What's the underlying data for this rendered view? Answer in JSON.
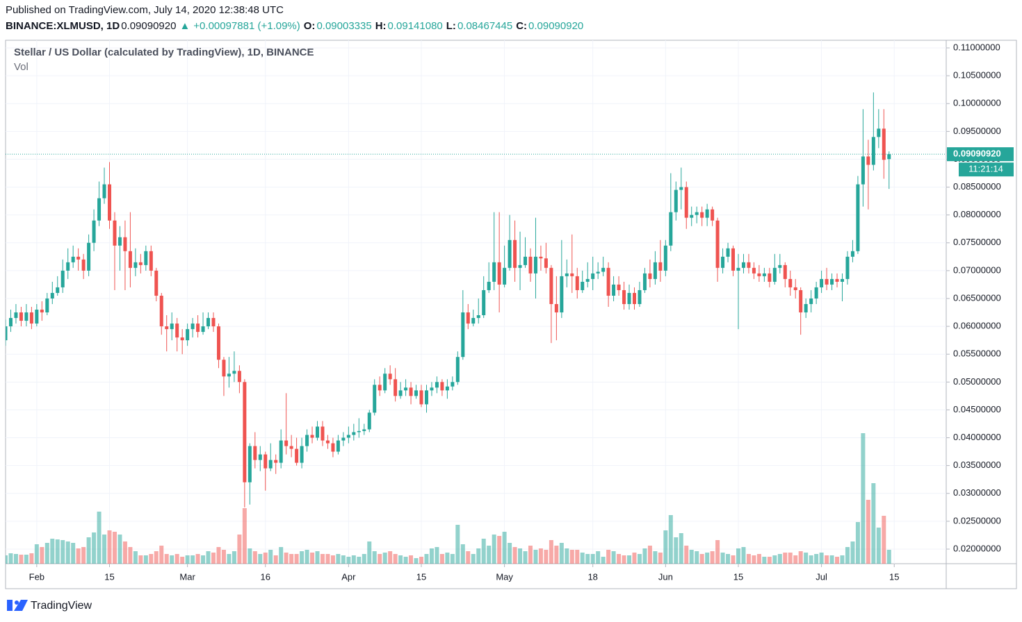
{
  "header": {
    "published": "Published on TradingView.com, July 14, 2020 12:38:48 UTC",
    "line2": [
      {
        "text": "BINANCE:XLMUSD, 1D",
        "color": "#131722",
        "bold": true
      },
      {
        "text": "0.09090920",
        "color": "#131722"
      },
      {
        "text": "▲",
        "color": "#26a69a"
      },
      {
        "text": "+0.00097881 (+1.09%)",
        "color": "#26a69a"
      },
      {
        "text": "O:",
        "color": "#131722",
        "bold": true
      },
      {
        "text": "0.09003335",
        "color": "#26a69a"
      },
      {
        "text": "H:",
        "color": "#131722",
        "bold": true
      },
      {
        "text": "0.09141080",
        "color": "#26a69a"
      },
      {
        "text": "L:",
        "color": "#131722",
        "bold": true
      },
      {
        "text": "0.08467445",
        "color": "#26a69a"
      },
      {
        "text": "C:",
        "color": "#131722",
        "bold": true
      },
      {
        "text": "0.09090920",
        "color": "#26a69a"
      }
    ]
  },
  "chart_data": {
    "type": "candlestick",
    "title": "Stellar / US Dollar (calculated by TradingView), 1D, BINANCE",
    "subtitle": "Vol",
    "up_color": "#26a69a",
    "down_color": "#ef5350",
    "grid": true,
    "xlim": [
      "2020-01-26",
      "2020-07-25"
    ],
    "ylim": [
      0.01738,
      0.11137
    ],
    "yticks": [
      {
        "value": 0.02,
        "label": "0.02000000"
      },
      {
        "value": 0.025,
        "label": "0.02500000"
      },
      {
        "value": 0.03,
        "label": "0.03000000"
      },
      {
        "value": 0.035,
        "label": "0.03500000"
      },
      {
        "value": 0.04,
        "label": "0.04000000"
      },
      {
        "value": 0.045,
        "label": "0.04500000"
      },
      {
        "value": 0.05,
        "label": "0.05000000"
      },
      {
        "value": 0.055,
        "label": "0.05500000"
      },
      {
        "value": 0.06,
        "label": "0.06000000"
      },
      {
        "value": 0.065,
        "label": "0.06500000"
      },
      {
        "value": 0.07,
        "label": "0.07000000"
      },
      {
        "value": 0.075,
        "label": "0.07500000"
      },
      {
        "value": 0.08,
        "label": "0.08000000"
      },
      {
        "value": 0.085,
        "label": "0.08500000"
      },
      {
        "value": 0.09,
        "label": "0.09000000"
      },
      {
        "value": 0.095,
        "label": "0.09500000"
      },
      {
        "value": 0.1,
        "label": "0.10000000"
      },
      {
        "value": 0.105,
        "label": "0.10500000"
      },
      {
        "value": 0.11,
        "label": "0.11000000"
      }
    ],
    "xticks": [
      {
        "value": "2020-02-01",
        "label": "Feb"
      },
      {
        "value": "2020-02-15",
        "label": "15"
      },
      {
        "value": "2020-03-01",
        "label": "Mar"
      },
      {
        "value": "2020-03-16",
        "label": "16"
      },
      {
        "value": "2020-04-01",
        "label": "Apr"
      },
      {
        "value": "2020-04-15",
        "label": "15"
      },
      {
        "value": "2020-05-01",
        "label": "May"
      },
      {
        "value": "2020-05-18",
        "label": "18"
      },
      {
        "value": "2020-06-01",
        "label": "Jun"
      },
      {
        "value": "2020-06-15",
        "label": "15"
      },
      {
        "value": "2020-07-01",
        "label": "Jul"
      },
      {
        "value": "2020-07-15",
        "label": "15"
      }
    ],
    "last_price": {
      "value": 0.0909092,
      "label": "0.09090920"
    },
    "countdown": "11:21:14",
    "x": [
      "2020-01-26",
      "2020-01-27",
      "2020-01-28",
      "2020-01-29",
      "2020-01-30",
      "2020-01-31",
      "2020-02-01",
      "2020-02-02",
      "2020-02-03",
      "2020-02-04",
      "2020-02-05",
      "2020-02-06",
      "2020-02-07",
      "2020-02-08",
      "2020-02-09",
      "2020-02-10",
      "2020-02-11",
      "2020-02-12",
      "2020-02-13",
      "2020-02-14",
      "2020-02-15",
      "2020-02-16",
      "2020-02-17",
      "2020-02-18",
      "2020-02-19",
      "2020-02-20",
      "2020-02-21",
      "2020-02-22",
      "2020-02-23",
      "2020-02-24",
      "2020-02-25",
      "2020-02-26",
      "2020-02-27",
      "2020-02-28",
      "2020-02-29",
      "2020-03-01",
      "2020-03-02",
      "2020-03-03",
      "2020-03-04",
      "2020-03-05",
      "2020-03-06",
      "2020-03-07",
      "2020-03-08",
      "2020-03-09",
      "2020-03-10",
      "2020-03-11",
      "2020-03-12",
      "2020-03-13",
      "2020-03-14",
      "2020-03-15",
      "2020-03-16",
      "2020-03-17",
      "2020-03-18",
      "2020-03-19",
      "2020-03-20",
      "2020-03-21",
      "2020-03-22",
      "2020-03-23",
      "2020-03-24",
      "2020-03-25",
      "2020-03-26",
      "2020-03-27",
      "2020-03-28",
      "2020-03-29",
      "2020-03-30",
      "2020-03-31",
      "2020-04-01",
      "2020-04-02",
      "2020-04-03",
      "2020-04-04",
      "2020-04-05",
      "2020-04-06",
      "2020-04-07",
      "2020-04-08",
      "2020-04-09",
      "2020-04-10",
      "2020-04-11",
      "2020-04-12",
      "2020-04-13",
      "2020-04-14",
      "2020-04-15",
      "2020-04-16",
      "2020-04-17",
      "2020-04-18",
      "2020-04-19",
      "2020-04-20",
      "2020-04-21",
      "2020-04-22",
      "2020-04-23",
      "2020-04-24",
      "2020-04-25",
      "2020-04-26",
      "2020-04-27",
      "2020-04-28",
      "2020-04-29",
      "2020-04-30",
      "2020-05-01",
      "2020-05-02",
      "2020-05-03",
      "2020-05-04",
      "2020-05-05",
      "2020-05-06",
      "2020-05-07",
      "2020-05-08",
      "2020-05-09",
      "2020-05-10",
      "2020-05-11",
      "2020-05-12",
      "2020-05-13",
      "2020-05-14",
      "2020-05-15",
      "2020-05-16",
      "2020-05-17",
      "2020-05-18",
      "2020-05-19",
      "2020-05-20",
      "2020-05-21",
      "2020-05-22",
      "2020-05-23",
      "2020-05-24",
      "2020-05-25",
      "2020-05-26",
      "2020-05-27",
      "2020-05-28",
      "2020-05-29",
      "2020-05-30",
      "2020-05-31",
      "2020-06-01",
      "2020-06-02",
      "2020-06-03",
      "2020-06-04",
      "2020-06-05",
      "2020-06-06",
      "2020-06-07",
      "2020-06-08",
      "2020-06-09",
      "2020-06-10",
      "2020-06-11",
      "2020-06-12",
      "2020-06-13",
      "2020-06-14",
      "2020-06-15",
      "2020-06-16",
      "2020-06-17",
      "2020-06-18",
      "2020-06-19",
      "2020-06-20",
      "2020-06-21",
      "2020-06-22",
      "2020-06-23",
      "2020-06-24",
      "2020-06-25",
      "2020-06-26",
      "2020-06-27",
      "2020-06-28",
      "2020-06-29",
      "2020-06-30",
      "2020-07-01",
      "2020-07-02",
      "2020-07-03",
      "2020-07-04",
      "2020-07-05",
      "2020-07-06",
      "2020-07-07",
      "2020-07-08",
      "2020-07-09",
      "2020-07-10",
      "2020-07-11",
      "2020-07-12",
      "2020-07-13",
      "2020-07-14"
    ],
    "open": [
      0.0575,
      0.06,
      0.0615,
      0.0625,
      0.061,
      0.0625,
      0.0605,
      0.063,
      0.0625,
      0.065,
      0.066,
      0.067,
      0.07,
      0.0715,
      0.0725,
      0.072,
      0.07,
      0.075,
      0.079,
      0.083,
      0.0855,
      0.079,
      0.0745,
      0.076,
      0.0735,
      0.0705,
      0.0715,
      0.071,
      0.0735,
      0.07,
      0.0655,
      0.06,
      0.0595,
      0.0605,
      0.058,
      0.0575,
      0.0595,
      0.0605,
      0.059,
      0.06,
      0.0615,
      0.06,
      0.054,
      0.051,
      0.0515,
      0.052,
      0.05,
      0.032,
      0.0385,
      0.036,
      0.037,
      0.0345,
      0.036,
      0.0355,
      0.0395,
      0.0385,
      0.038,
      0.0355,
      0.0385,
      0.0405,
      0.04,
      0.042,
      0.0395,
      0.039,
      0.0375,
      0.0395,
      0.04,
      0.0405,
      0.041,
      0.0412,
      0.0415,
      0.0445,
      0.0495,
      0.0485,
      0.0515,
      0.0505,
      0.0475,
      0.0485,
      0.049,
      0.0475,
      0.0485,
      0.046,
      0.0485,
      0.049,
      0.05,
      0.0485,
      0.0492,
      0.05,
      0.0545,
      0.0625,
      0.0605,
      0.0615,
      0.062,
      0.0665,
      0.068,
      0.0715,
      0.0675,
      0.0705,
      0.0755,
      0.0705,
      0.071,
      0.0725,
      0.0695,
      0.0725,
      0.0722,
      0.0705,
      0.064,
      0.0625,
      0.069,
      0.0695,
      0.069,
      0.0665,
      0.068,
      0.0685,
      0.0695,
      0.0698,
      0.0705,
      0.0655,
      0.0675,
      0.0665,
      0.064,
      0.066,
      0.064,
      0.0665,
      0.0695,
      0.0685,
      0.0715,
      0.07,
      0.0745,
      0.0805,
      0.0845,
      0.085,
      0.0795,
      0.08,
      0.0805,
      0.0795,
      0.081,
      0.079,
      0.0705,
      0.0725,
      0.074,
      0.07,
      0.0705,
      0.0715,
      0.0705,
      0.0695,
      0.069,
      0.0695,
      0.068,
      0.0705,
      0.071,
      0.0685,
      0.067,
      0.0665,
      0.0625,
      0.064,
      0.065,
      0.067,
      0.0685,
      0.0675,
      0.0685,
      0.068,
      0.0685,
      0.0725,
      0.0735,
      0.0855,
      0.0905,
      0.089,
      0.094,
      0.0955,
      0.09003335
    ],
    "high": [
      0.0612,
      0.063,
      0.064,
      0.0635,
      0.064,
      0.0635,
      0.064,
      0.0645,
      0.066,
      0.068,
      0.069,
      0.072,
      0.074,
      0.0745,
      0.074,
      0.073,
      0.0765,
      0.081,
      0.086,
      0.0885,
      0.0895,
      0.0805,
      0.078,
      0.079,
      0.0805,
      0.074,
      0.073,
      0.0745,
      0.0745,
      0.0705,
      0.066,
      0.062,
      0.0625,
      0.0615,
      0.0595,
      0.0605,
      0.0615,
      0.062,
      0.0625,
      0.0625,
      0.0625,
      0.0605,
      0.0545,
      0.0545,
      0.0555,
      0.053,
      0.0505,
      0.039,
      0.041,
      0.0385,
      0.0375,
      0.039,
      0.037,
      0.0415,
      0.048,
      0.0405,
      0.04,
      0.04,
      0.0415,
      0.042,
      0.043,
      0.043,
      0.0405,
      0.04,
      0.0405,
      0.041,
      0.042,
      0.0425,
      0.0435,
      0.0425,
      0.045,
      0.0505,
      0.051,
      0.0525,
      0.053,
      0.0525,
      0.05,
      0.0505,
      0.05,
      0.0495,
      0.0495,
      0.0495,
      0.05,
      0.051,
      0.0505,
      0.0505,
      0.051,
      0.0555,
      0.0665,
      0.064,
      0.063,
      0.065,
      0.069,
      0.0715,
      0.0805,
      0.0805,
      0.0745,
      0.08,
      0.079,
      0.077,
      0.076,
      0.074,
      0.0795,
      0.0745,
      0.075,
      0.071,
      0.069,
      0.0755,
      0.072,
      0.0765,
      0.0705,
      0.07,
      0.0715,
      0.0725,
      0.0715,
      0.0725,
      0.0715,
      0.069,
      0.069,
      0.068,
      0.0675,
      0.067,
      0.068,
      0.0705,
      0.072,
      0.0735,
      0.0755,
      0.0755,
      0.0875,
      0.086,
      0.0885,
      0.086,
      0.0815,
      0.0815,
      0.0815,
      0.082,
      0.0815,
      0.0795,
      0.074,
      0.075,
      0.0745,
      0.073,
      0.073,
      0.073,
      0.0715,
      0.071,
      0.0705,
      0.0705,
      0.073,
      0.073,
      0.0715,
      0.07,
      0.0685,
      0.067,
      0.065,
      0.0665,
      0.068,
      0.07,
      0.0705,
      0.0695,
      0.0695,
      0.0695,
      0.0735,
      0.0755,
      0.087,
      0.099,
      0.0935,
      0.102,
      0.099,
      0.099,
      0.0914108
    ],
    "low": [
      0.0565,
      0.059,
      0.0605,
      0.06,
      0.06,
      0.0595,
      0.06,
      0.061,
      0.062,
      0.064,
      0.0655,
      0.066,
      0.0685,
      0.0705,
      0.07,
      0.0685,
      0.069,
      0.0735,
      0.078,
      0.082,
      0.0775,
      0.0665,
      0.07,
      0.0665,
      0.067,
      0.069,
      0.0695,
      0.07,
      0.069,
      0.0645,
      0.0585,
      0.0555,
      0.0575,
      0.0555,
      0.055,
      0.0565,
      0.058,
      0.058,
      0.0585,
      0.0595,
      0.059,
      0.0525,
      0.0475,
      0.049,
      0.05,
      0.048,
      0.0275,
      0.028,
      0.0345,
      0.034,
      0.0305,
      0.034,
      0.0335,
      0.0345,
      0.037,
      0.0365,
      0.035,
      0.0345,
      0.0375,
      0.039,
      0.0395,
      0.0385,
      0.038,
      0.0365,
      0.037,
      0.0385,
      0.039,
      0.0395,
      0.04,
      0.0405,
      0.041,
      0.044,
      0.0475,
      0.048,
      0.0495,
      0.0465,
      0.047,
      0.0475,
      0.046,
      0.047,
      0.0455,
      0.0445,
      0.0475,
      0.048,
      0.0475,
      0.047,
      0.0485,
      0.0495,
      0.054,
      0.0595,
      0.06,
      0.0605,
      0.0615,
      0.066,
      0.0665,
      0.0625,
      0.067,
      0.07,
      0.068,
      0.0665,
      0.0705,
      0.068,
      0.065,
      0.07,
      0.0695,
      0.057,
      0.0575,
      0.0615,
      0.067,
      0.066,
      0.065,
      0.066,
      0.067,
      0.0665,
      0.0685,
      0.069,
      0.0635,
      0.0645,
      0.0655,
      0.063,
      0.063,
      0.063,
      0.0635,
      0.066,
      0.067,
      0.0675,
      0.068,
      0.069,
      0.0735,
      0.079,
      0.081,
      0.0775,
      0.078,
      0.0785,
      0.078,
      0.078,
      0.078,
      0.068,
      0.0695,
      0.0715,
      0.069,
      0.0595,
      0.0695,
      0.0695,
      0.0685,
      0.068,
      0.068,
      0.067,
      0.0675,
      0.0695,
      0.067,
      0.0655,
      0.065,
      0.0585,
      0.0615,
      0.0625,
      0.064,
      0.066,
      0.0665,
      0.0665,
      0.067,
      0.0645,
      0.0675,
      0.0715,
      0.073,
      0.0815,
      0.081,
      0.088,
      0.092,
      0.0865,
      0.08467445
    ],
    "close": [
      0.06,
      0.0615,
      0.0625,
      0.061,
      0.0625,
      0.0605,
      0.063,
      0.0625,
      0.065,
      0.066,
      0.067,
      0.07,
      0.0715,
      0.0725,
      0.072,
      0.07,
      0.075,
      0.079,
      0.083,
      0.0855,
      0.079,
      0.0745,
      0.076,
      0.0735,
      0.0705,
      0.0715,
      0.071,
      0.0735,
      0.07,
      0.0655,
      0.06,
      0.0595,
      0.0605,
      0.058,
      0.0575,
      0.0595,
      0.0605,
      0.059,
      0.06,
      0.0615,
      0.06,
      0.054,
      0.051,
      0.0515,
      0.052,
      0.05,
      0.032,
      0.0385,
      0.036,
      0.037,
      0.0345,
      0.036,
      0.0355,
      0.0395,
      0.0385,
      0.038,
      0.0355,
      0.0385,
      0.0405,
      0.04,
      0.042,
      0.0395,
      0.039,
      0.0375,
      0.0395,
      0.04,
      0.0405,
      0.041,
      0.0412,
      0.0415,
      0.0445,
      0.0495,
      0.0485,
      0.0515,
      0.0505,
      0.0475,
      0.0485,
      0.049,
      0.0475,
      0.0485,
      0.046,
      0.0485,
      0.049,
      0.05,
      0.0485,
      0.0492,
      0.05,
      0.0545,
      0.0625,
      0.0605,
      0.0615,
      0.062,
      0.0665,
      0.068,
      0.0715,
      0.0675,
      0.0705,
      0.0755,
      0.0705,
      0.071,
      0.0725,
      0.0695,
      0.0725,
      0.0722,
      0.0705,
      0.064,
      0.0625,
      0.069,
      0.0695,
      0.069,
      0.0665,
      0.068,
      0.0685,
      0.0695,
      0.0698,
      0.0705,
      0.0655,
      0.0675,
      0.0665,
      0.064,
      0.066,
      0.064,
      0.0665,
      0.0695,
      0.0685,
      0.0715,
      0.07,
      0.0745,
      0.0805,
      0.0845,
      0.085,
      0.0795,
      0.08,
      0.0805,
      0.0795,
      0.081,
      0.079,
      0.0705,
      0.0725,
      0.074,
      0.07,
      0.0705,
      0.0715,
      0.0705,
      0.0695,
      0.069,
      0.0695,
      0.068,
      0.0705,
      0.071,
      0.0685,
      0.067,
      0.0665,
      0.0625,
      0.064,
      0.065,
      0.067,
      0.0685,
      0.0675,
      0.0685,
      0.068,
      0.0685,
      0.0725,
      0.0735,
      0.0855,
      0.0905,
      0.089,
      0.094,
      0.0955,
      0.0899,
      0.0909092
    ],
    "volume": [
      12,
      15,
      14,
      13,
      13,
      15,
      28,
      24,
      30,
      36,
      35,
      34,
      32,
      30,
      22,
      24,
      38,
      45,
      75,
      42,
      48,
      46,
      42,
      32,
      24,
      18,
      12,
      12,
      14,
      18,
      26,
      14,
      12,
      14,
      10,
      12,
      12,
      14,
      12,
      18,
      16,
      24,
      20,
      14,
      18,
      42,
      80,
      22,
      18,
      14,
      16,
      20,
      12,
      24,
      16,
      14,
      14,
      18,
      20,
      16,
      18,
      14,
      14,
      12,
      14,
      12,
      10,
      12,
      10,
      14,
      32,
      18,
      14,
      16,
      18,
      14,
      12,
      10,
      12,
      8,
      10,
      14,
      22,
      24,
      14,
      16,
      14,
      56,
      28,
      18,
      14,
      22,
      36,
      26,
      42,
      40,
      46,
      30,
      24,
      22,
      18,
      26,
      20,
      22,
      20,
      34,
      26,
      30,
      22,
      20,
      20,
      16,
      14,
      14,
      18,
      10,
      20,
      18,
      14,
      12,
      12,
      16,
      14,
      22,
      26,
      18,
      16,
      48,
      70,
      38,
      44,
      26,
      20,
      18,
      14,
      16,
      18,
      34,
      16,
      14,
      12,
      22,
      24,
      14,
      12,
      14,
      10,
      10,
      12,
      14,
      16,
      16,
      12,
      18,
      16,
      12,
      14,
      16,
      12,
      12,
      10,
      12,
      24,
      32,
      60,
      188,
      92,
      116,
      52,
      69,
      20
    ]
  },
  "footer": {
    "brand": "TradingView"
  }
}
